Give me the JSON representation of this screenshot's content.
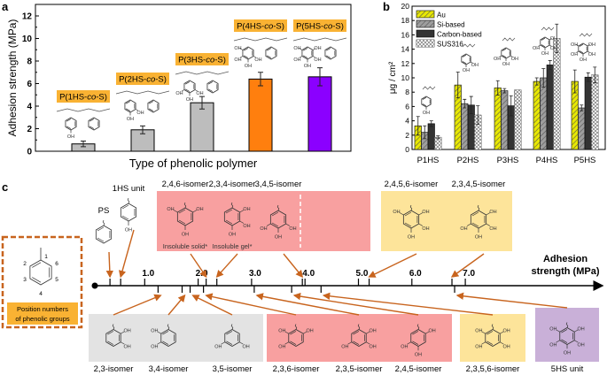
{
  "panel_labels": {
    "a": "a",
    "b": "b",
    "c": "c"
  },
  "chart_data": [
    {
      "type": "bar",
      "panel": "a",
      "title": "",
      "xlabel": "Type of phenolic polymer",
      "ylabel": "Adhesion strength (MPa)",
      "ylim": [
        0,
        12
      ],
      "yticks": [
        0,
        2,
        4,
        6,
        8,
        10,
        12
      ],
      "categories": [
        "P(1HS-co-S)",
        "P(2HS-co-S)",
        "P(3HS-co-S)",
        "P(4HS-co-S)",
        "P(5HS-co-S)"
      ],
      "values": [
        0.65,
        1.9,
        4.3,
        6.4,
        6.6
      ],
      "errors": [
        0.25,
        0.35,
        0.55,
        0.6,
        0.8
      ],
      "colors": [
        "#bdbdbd",
        "#bdbdbd",
        "#bdbdbd",
        "#ff7f0e",
        "#8b00ff"
      ],
      "label_box_color": "#f9b233",
      "grid": false
    },
    {
      "type": "bar",
      "panel": "b",
      "xlabel": "",
      "ylabel": "μg / cm²",
      "ylim": [
        0,
        20
      ],
      "yticks": [
        0,
        2,
        4,
        6,
        8,
        10,
        12,
        14,
        16,
        18,
        20
      ],
      "categories": [
        "P1HS",
        "P2HS",
        "P3HS",
        "P4HS",
        "P5HS"
      ],
      "legend_position": "top-left",
      "series": [
        {
          "name": "Au",
          "values": [
            3.3,
            9.0,
            8.6,
            9.5,
            9.5
          ],
          "errors": [
            1.3,
            1.8,
            1.0,
            0.5,
            1.6
          ],
          "color": "#e8e800",
          "pattern": "hatch"
        },
        {
          "name": "Si-based",
          "values": [
            2.4,
            6.4,
            8.2,
            10.0,
            5.8
          ],
          "errors": [
            0.9,
            0.6,
            0.3,
            1.3,
            0.4
          ],
          "color": "#9e9e9e",
          "pattern": "hatch"
        },
        {
          "name": "Carbon-based",
          "values": [
            3.6,
            6.2,
            6.1,
            11.8,
            10.1
          ],
          "errors": [
            0.4,
            1.2,
            1.4,
            0.6,
            0.6
          ],
          "color": "#333333",
          "pattern": "solid"
        },
        {
          "name": "SUS316",
          "values": [
            1.7,
            4.8,
            8.3,
            15.5,
            10.4
          ],
          "errors": [
            0.2,
            1.3,
            0.0,
            2.0,
            1.1
          ],
          "color": "#ffffff",
          "pattern": "cross"
        }
      ],
      "grid": false
    },
    {
      "type": "scatter",
      "panel": "c",
      "xlabel": "Adhesion strength (MPa)",
      "xticks": [
        "1.0",
        "2.0",
        "3.0",
        "4.0",
        "5.0",
        "6.0",
        "7.0"
      ],
      "xtick_values": [
        1,
        2,
        3,
        4,
        5,
        6,
        7
      ],
      "above": [
        {
          "name": "PS",
          "value": 0.35
        },
        {
          "name": "1HS unit",
          "value": 0.55
        },
        {
          "name": "2,4,6-isomer",
          "value": 2.15,
          "note": "Insoluble solid*"
        },
        {
          "name": "2,3,4-isomer",
          "value": 2.35,
          "note": "Insoluble gel*"
        },
        {
          "name": "3,4,5-isomer",
          "value": 3.95
        },
        {
          "name": "2,4,5,6-isomer",
          "value": 5.2
        },
        {
          "name": "2,3,4,5-isomer",
          "value": 6.75
        }
      ],
      "below": [
        {
          "name": "2,3-isomer",
          "value": 1.25
        },
        {
          "name": "3,4-isomer",
          "value": 1.7
        },
        {
          "name": "3,5-isomer",
          "value": 1.85
        },
        {
          "name": "2,3,6-isomer",
          "value": 2.1
        },
        {
          "name": "2,3,5-isomer",
          "value": 3.05
        },
        {
          "name": "2,4,5-isomer",
          "value": 3.75
        },
        {
          "name": "2,3,5,6-isomer",
          "value": 4.3
        },
        {
          "name": "5HS unit",
          "value": 6.8
        }
      ],
      "group_colors": {
        "di": "#e3e3e3",
        "tri": "#f8a0a0",
        "tetra": "#fde49a",
        "penta": "#c9b0d8",
        "arrow": "#c8641e"
      },
      "legend_box": {
        "label": "Position numbers of phenolic groups",
        "positions": [
          "1",
          "2",
          "3",
          "4",
          "5",
          "6"
        ]
      },
      "substituent_label": "OH"
    }
  ]
}
